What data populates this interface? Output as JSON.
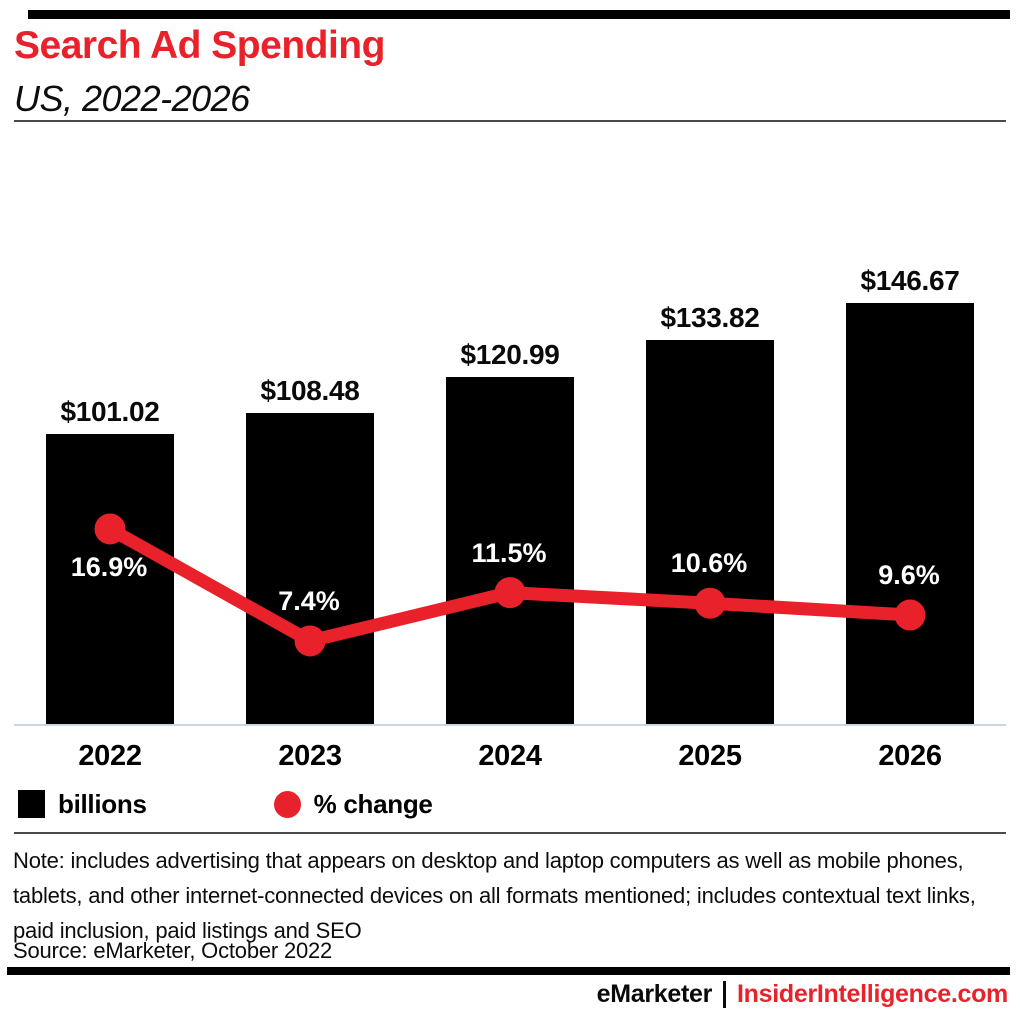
{
  "accent_color": "#e9212a",
  "baseline_color": "#ccd5e3",
  "header": {
    "title": "Search Ad Spending",
    "subtitle": "US, 2022-2026"
  },
  "chart_data": {
    "type": "bar",
    "title": "Search Ad Spending",
    "subtitle": "US, 2022-2026",
    "categories": [
      "2022",
      "2023",
      "2024",
      "2025",
      "2026"
    ],
    "series": [
      {
        "name": "billions",
        "type": "bar",
        "color": "#000000",
        "values": [
          101.02,
          108.48,
          120.99,
          133.82,
          146.67
        ],
        "labels": [
          "$101.02",
          "$108.48",
          "$120.99",
          "$133.82",
          "$146.67"
        ]
      },
      {
        "name": "% change",
        "type": "line",
        "color": "#e9212a",
        "values": [
          16.9,
          7.4,
          11.5,
          10.6,
          9.6
        ],
        "labels": [
          "16.9%",
          "7.4%",
          "11.5%",
          "10.6%",
          "9.6%"
        ]
      }
    ],
    "legend": [
      {
        "label": "billions",
        "swatch": "square",
        "color": "#000000"
      },
      {
        "label": "% change",
        "swatch": "circle",
        "color": "#e9212a"
      }
    ],
    "legend_position": "bottom-left",
    "grid": false,
    "ylabel": "",
    "xlabel": ""
  },
  "note": "Note: includes advertising that appears on desktop and laptop computers as well as mobile phones, tablets, and other internet-connected devices on all formats mentioned; includes contextual text links, paid inclusion, paid listings and SEO",
  "source": "Source: eMarketer, October 2022",
  "footer": {
    "brand": "eMarketer",
    "site": "InsiderIntelligence.com"
  }
}
